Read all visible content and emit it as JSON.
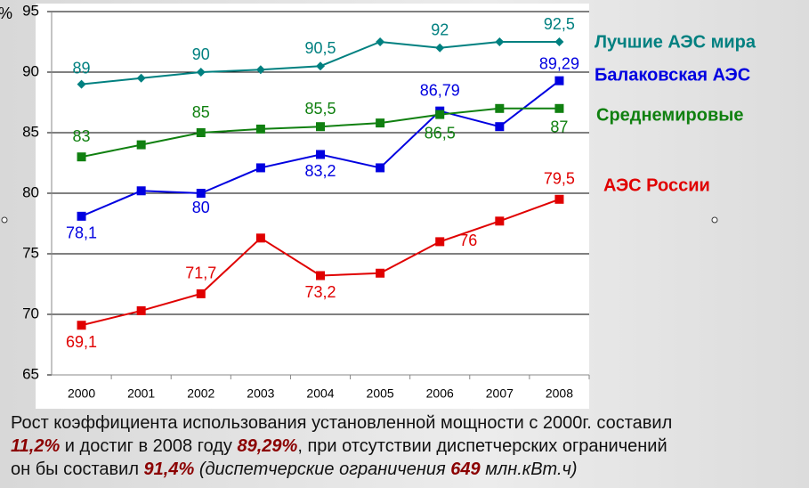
{
  "chart_data": {
    "type": "line",
    "y_label": "%",
    "categories": [
      "2000",
      "2001",
      "2002",
      "2003",
      "2004",
      "2005",
      "2006",
      "2007",
      "2008"
    ],
    "ylim": [
      65,
      95
    ],
    "yticks": [
      65,
      70,
      75,
      80,
      85,
      90,
      95
    ],
    "grid": true,
    "legend": "right",
    "series": [
      {
        "name": "Лучшие АЭС мира",
        "color": "#008080",
        "marker": "diamond",
        "values": [
          89,
          89.5,
          90,
          90.2,
          90.5,
          92.5,
          92,
          92.5,
          92.5
        ],
        "value_labels": [
          "89",
          null,
          "90",
          null,
          "90,5",
          null,
          "92",
          null,
          "92,5"
        ]
      },
      {
        "name": "Балаковская АЭС",
        "color": "#0000e0",
        "marker": "square",
        "values": [
          78.1,
          80.2,
          80,
          82.1,
          83.2,
          82.1,
          86.79,
          85.5,
          89.29
        ],
        "value_labels": [
          "78,1",
          null,
          "80",
          null,
          "83,2",
          null,
          "86,79",
          null,
          "89,29"
        ]
      },
      {
        "name": "Среднемировые",
        "color": "#108010",
        "marker": "square",
        "values": [
          83,
          84,
          85,
          85.3,
          85.5,
          85.8,
          86.5,
          87,
          87
        ],
        "value_labels": [
          "83",
          null,
          "85",
          null,
          "85,5",
          null,
          "86,5",
          null,
          "87"
        ]
      },
      {
        "name": "АЭС России",
        "color": "#e00000",
        "marker": "square",
        "values": [
          69.1,
          70.3,
          71.7,
          76.3,
          73.2,
          73.4,
          76,
          77.7,
          79.5
        ],
        "value_labels": [
          "69,1",
          null,
          "71,7",
          null,
          "73,2",
          null,
          "76",
          null,
          "79,5"
        ]
      }
    ]
  },
  "footnote": {
    "line1": "Рост коэффициента использования установленной мощности с 2000г. составил",
    "line2": [
      "11,2%",
      " и достиг в 2008 году ",
      "89,29%",
      ", при отсутствии диспетчерских ограничений"
    ],
    "line3": [
      "он бы составил ",
      "91,4%",
      " (диспетчерские ограничения ",
      "649",
      " млн.кВт.ч)"
    ]
  }
}
